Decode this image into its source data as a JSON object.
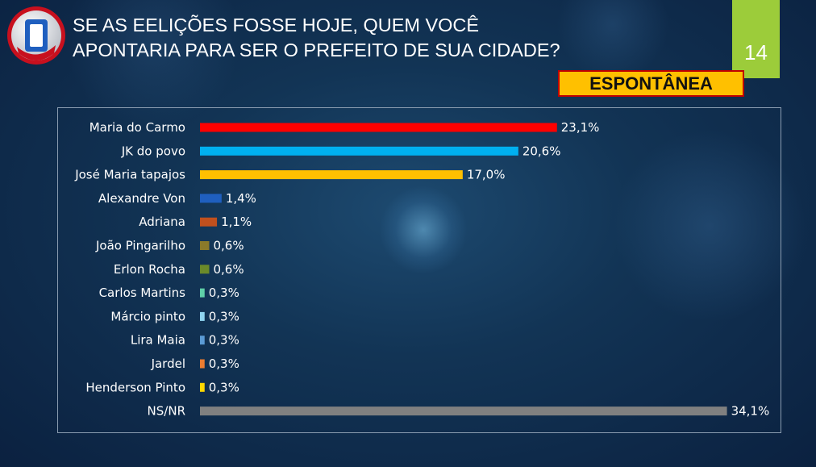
{
  "header": {
    "title_line1": "SE AS EELIÇÕES FOSSE HOJE, QUEM VOCÊ",
    "title_line2": "APONTARIA PARA SER O PREFEITO DE SUA CIDADE?",
    "page_number": "14",
    "badge": "ESPONTÂNEA"
  },
  "colors": {
    "badge_fill": "#ffc000",
    "badge_border": "#c00000",
    "page_box": "#9ccc3a",
    "background": "#123455"
  },
  "chart_data": {
    "type": "bar",
    "orientation": "horizontal",
    "categories": [
      "Maria do Carmo",
      "JK do povo",
      "José Maria tapajos",
      "Alexandre Von",
      "Adriana",
      "João Pingarilho",
      "Erlon Rocha",
      "Carlos Martins",
      "Márcio pinto",
      "Lira Maia",
      "Jardel",
      "Henderson Pinto",
      "NS/NR"
    ],
    "values": [
      23.1,
      20.6,
      17.0,
      1.4,
      1.1,
      0.6,
      0.6,
      0.3,
      0.3,
      0.3,
      0.3,
      0.3,
      34.1
    ],
    "value_labels": [
      "23,1%",
      "20,6%",
      "17,0%",
      "1,4%",
      "1,1%",
      "0,6%",
      "0,6%",
      "0,3%",
      "0,3%",
      "0,3%",
      "0,3%",
      "0,3%",
      "34,1%"
    ],
    "bar_colors": [
      "#ff0000",
      "#00b0f0",
      "#ffc000",
      "#1f5fbf",
      "#c0501e",
      "#8a7a2a",
      "#6a8a2a",
      "#5fd0a8",
      "#8fd4f0",
      "#5b9bd5",
      "#ed7d31",
      "#ffd700",
      "#808080"
    ],
    "xlim": [
      0,
      36
    ],
    "grid": false,
    "legend": "none"
  }
}
